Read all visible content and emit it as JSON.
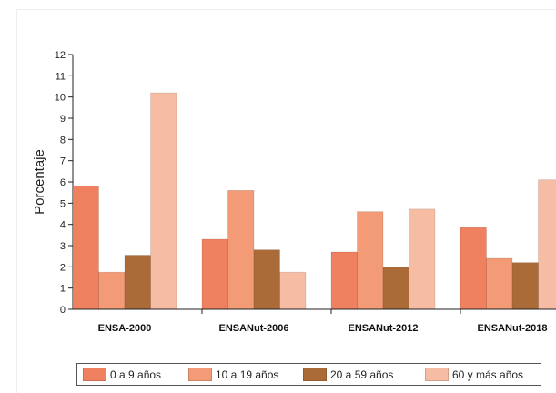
{
  "chart_data": {
    "type": "bar",
    "title": "",
    "xlabel": "",
    "ylabel": "Porcentaje",
    "ylim": [
      0,
      12
    ],
    "yticks": [
      0,
      1,
      2,
      3,
      4,
      5,
      6,
      7,
      8,
      9,
      10,
      11,
      12
    ],
    "grid": false,
    "legend_position": "bottom",
    "categories": [
      "ENSA-2000",
      "ENSANut-2006",
      "ENSANut-2012",
      "ENSANut-2018"
    ],
    "series": [
      {
        "name": "0 a 9 años",
        "color": "#ef8060",
        "values": [
          5.8,
          3.3,
          2.7,
          3.85
        ]
      },
      {
        "name": "10 a 19 años",
        "color": "#f29b76",
        "values": [
          1.75,
          5.6,
          4.6,
          2.4
        ]
      },
      {
        "name": "20 a 59 años",
        "color": "#ab6b38",
        "values": [
          2.55,
          2.8,
          2.0,
          2.2
        ]
      },
      {
        "name": "60 y más años",
        "color": "#f6bda4",
        "values": [
          10.2,
          1.75,
          4.72,
          6.1
        ]
      }
    ]
  }
}
